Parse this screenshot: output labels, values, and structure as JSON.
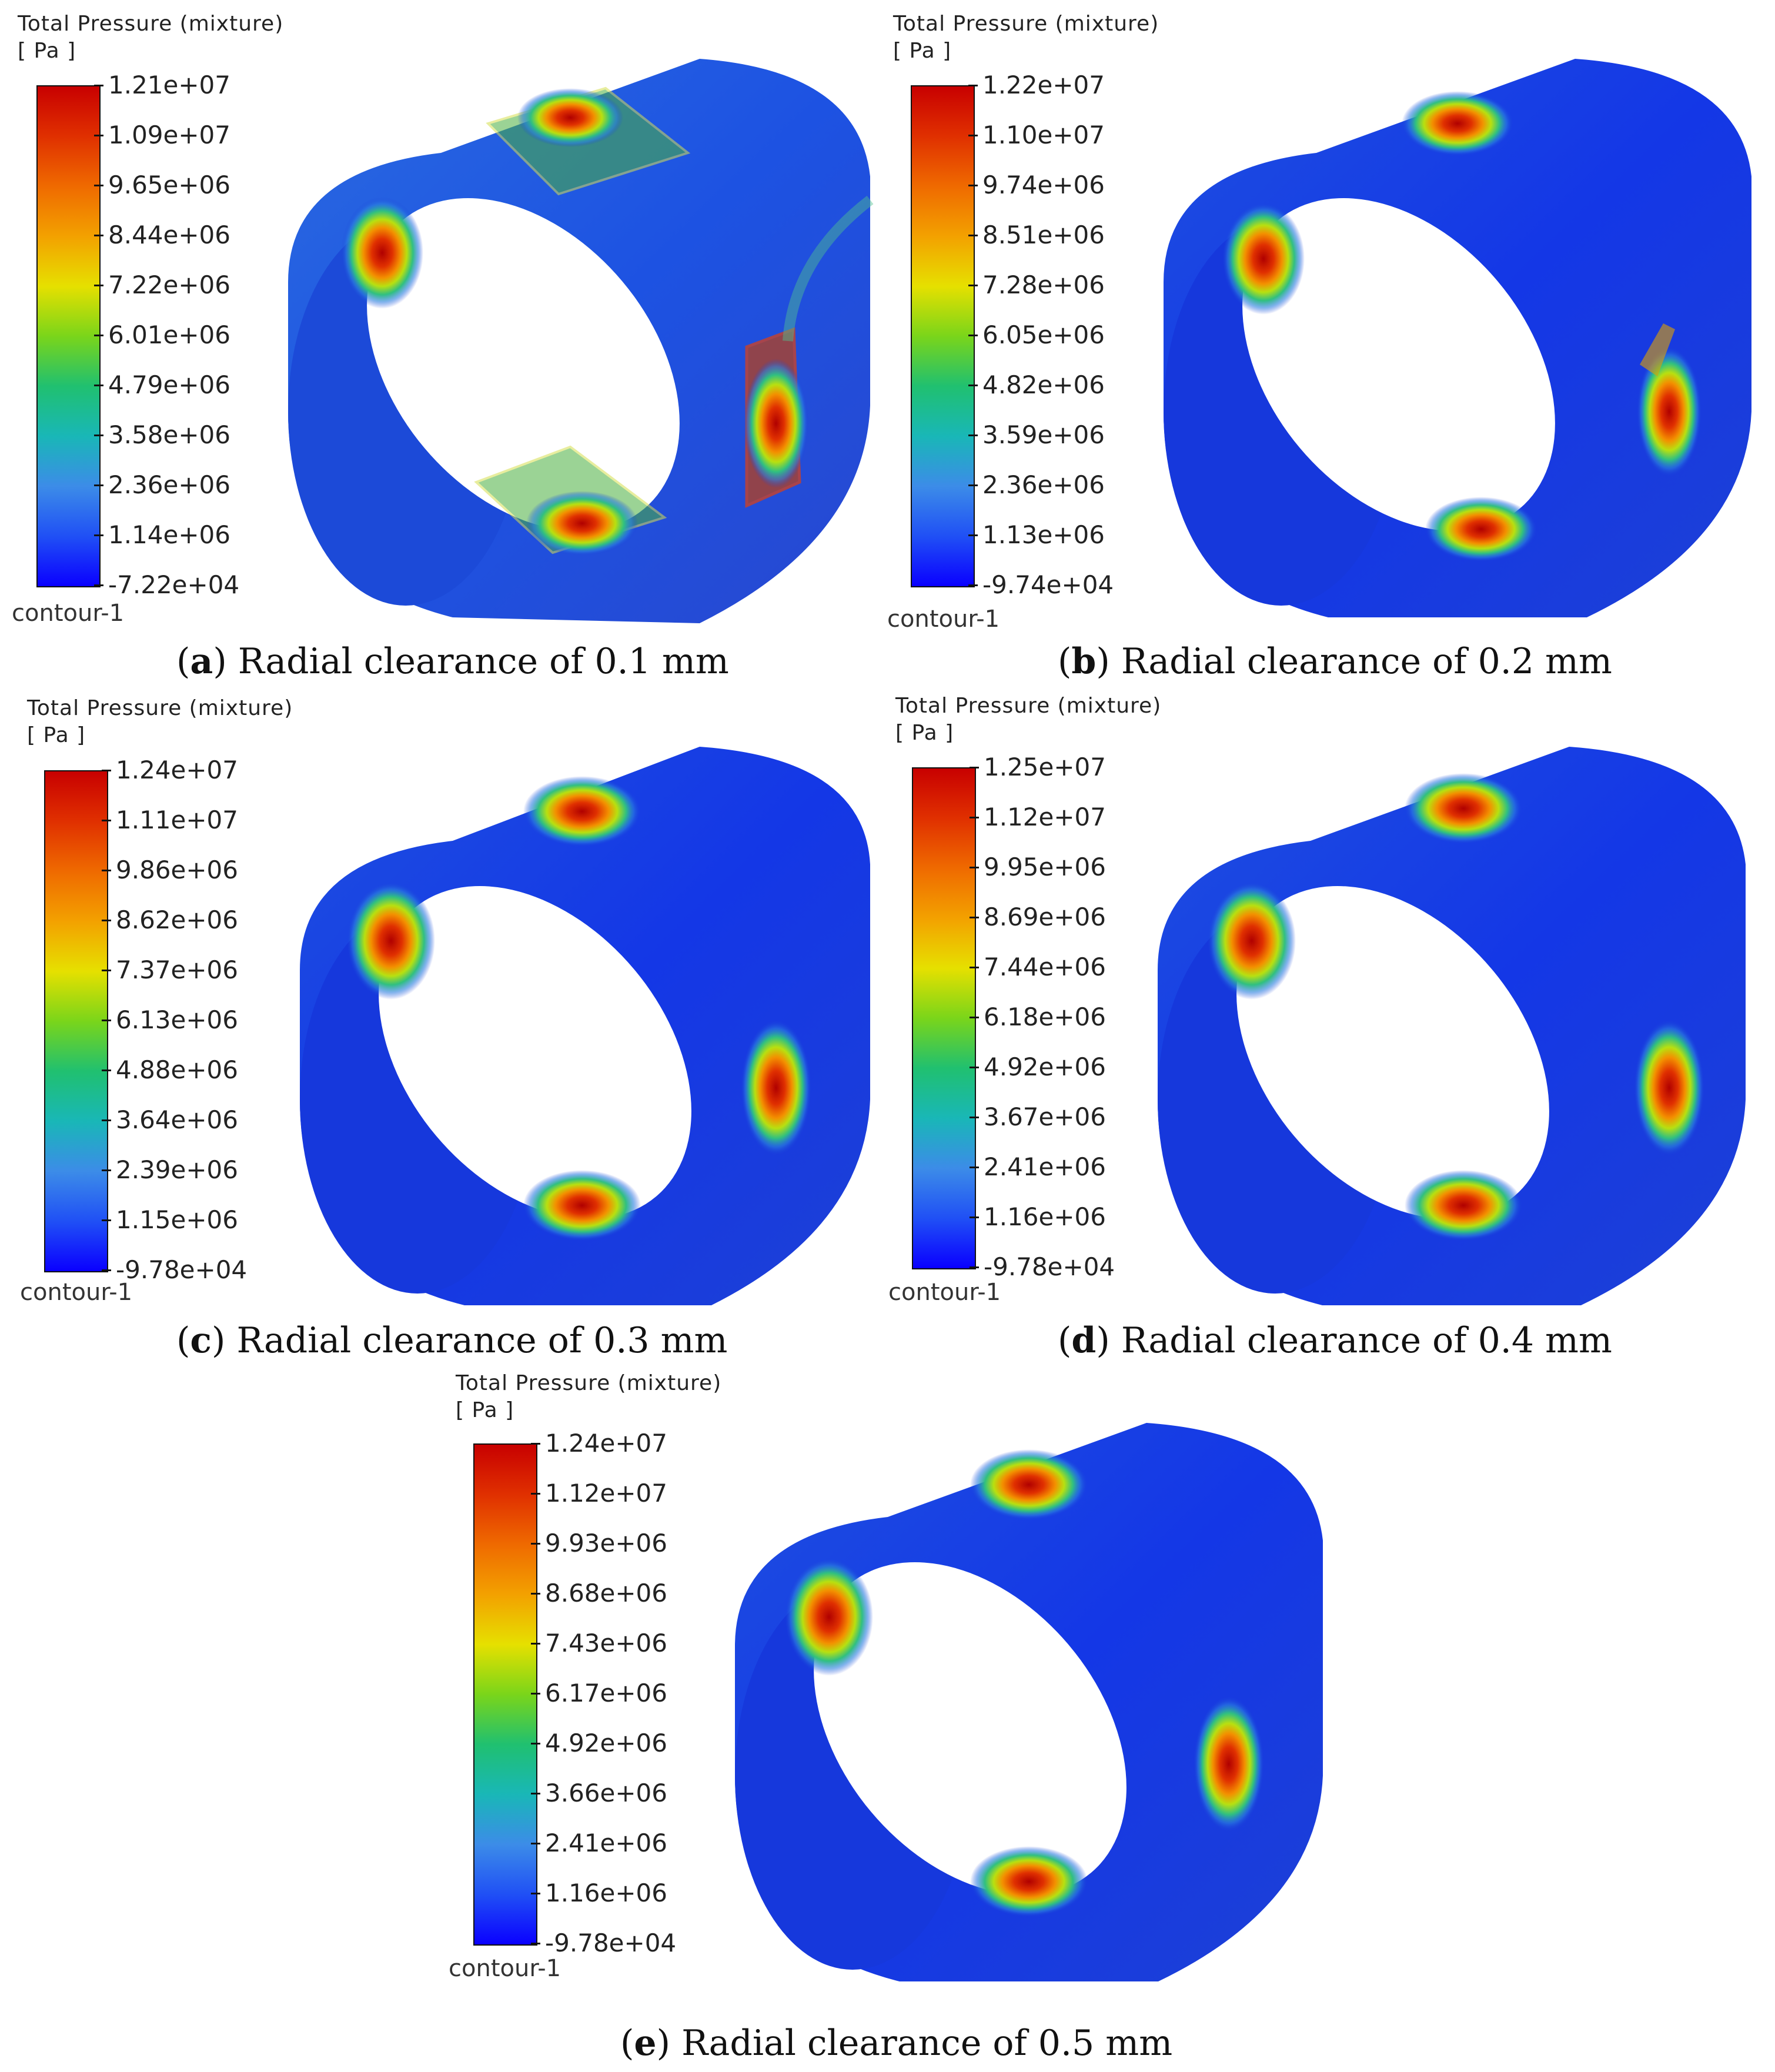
{
  "panels": [
    {
      "id": "a",
      "legend_title": "Total Pressure (mixture)",
      "legend_unit": "[ Pa ]",
      "ticks": [
        "1.21e+07",
        "1.09e+07",
        "9.65e+06",
        "8.44e+06",
        "7.22e+06",
        "6.01e+06",
        "4.79e+06",
        "3.58e+06",
        "2.36e+06",
        "1.14e+06",
        "-7.22e+04"
      ],
      "contour_label": "contour-1",
      "caption_letter": "a",
      "caption_text": "Radial clearance of 0.1 mm"
    },
    {
      "id": "b",
      "legend_title": "Total Pressure (mixture)",
      "legend_unit": "[ Pa ]",
      "ticks": [
        "1.22e+07",
        "1.10e+07",
        "9.74e+06",
        "8.51e+06",
        "7.28e+06",
        "6.05e+06",
        "4.82e+06",
        "3.59e+06",
        "2.36e+06",
        "1.13e+06",
        "-9.74e+04"
      ],
      "contour_label": "contour-1",
      "caption_letter": "b",
      "caption_text": "Radial clearance of 0.2 mm"
    },
    {
      "id": "c",
      "legend_title": "Total Pressure (mixture)",
      "legend_unit": "[ Pa ]",
      "ticks": [
        "1.24e+07",
        "1.11e+07",
        "9.86e+06",
        "8.62e+06",
        "7.37e+06",
        "6.13e+06",
        "4.88e+06",
        "3.64e+06",
        "2.39e+06",
        "1.15e+06",
        "-9.78e+04"
      ],
      "contour_label": "contour-1",
      "caption_letter": "c",
      "caption_text": "Radial clearance of 0.3 mm"
    },
    {
      "id": "d",
      "legend_title": "Total Pressure (mixture)",
      "legend_unit": "[ Pa ]",
      "ticks": [
        "1.25e+07",
        "1.12e+07",
        "9.95e+06",
        "8.69e+06",
        "7.44e+06",
        "6.18e+06",
        "4.92e+06",
        "3.67e+06",
        "2.41e+06",
        "1.16e+06",
        "-9.78e+04"
      ],
      "contour_label": "contour-1",
      "caption_letter": "d",
      "caption_text": "Radial clearance of 0.4 mm"
    },
    {
      "id": "e",
      "legend_title": "Total Pressure (mixture)",
      "legend_unit": "[ Pa ]",
      "ticks": [
        "1.24e+07",
        "1.12e+07",
        "9.93e+06",
        "8.68e+06",
        "7.43e+06",
        "6.17e+06",
        "4.92e+06",
        "3.66e+06",
        "2.41e+06",
        "1.16e+06",
        "-9.78e+04"
      ],
      "contour_label": "contour-1",
      "caption_letter": "e",
      "caption_text": "Radial clearance of 0.5 mm"
    }
  ],
  "colors": {
    "max_red": "#c80000",
    "min_blue": "#0a00ff",
    "surface_blue": "#1a3fd8"
  }
}
